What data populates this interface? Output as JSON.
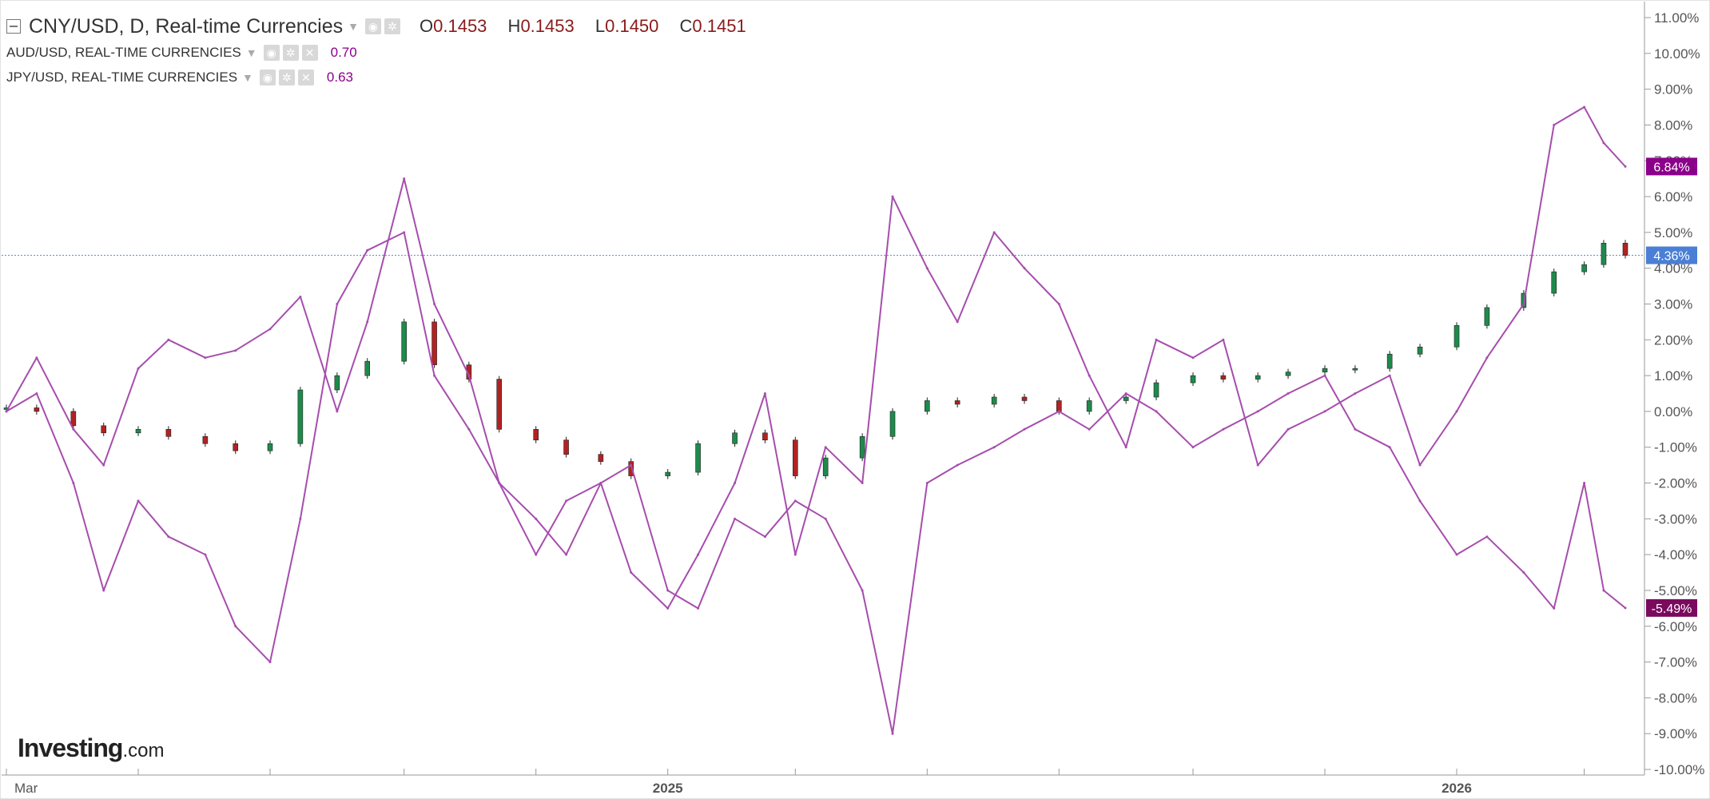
{
  "legend": {
    "main": {
      "title": "CNY/USD, D, Real-time Currencies",
      "open_label": "O",
      "open": "0.1453",
      "high_label": "H",
      "high": "0.1453",
      "low_label": "L",
      "low": "0.1450",
      "close_label": "C",
      "close": "0.1451"
    },
    "overlays": [
      {
        "name": "AUD/USD, REAL-TIME CURRENCIES",
        "value": "0.70"
      },
      {
        "name": "JPY/USD, REAL-TIME CURRENCIES",
        "value": "0.63"
      }
    ]
  },
  "logo": {
    "text": "Investing",
    "suffix": ".com"
  },
  "colors": {
    "overlay_line": "#a64dad",
    "candle_up": "#1e8a4c",
    "candle_down": "#b22222",
    "last_price_line": "#5b8fd9",
    "badge_blue": "#4a7fd6",
    "badge_purple_top": "#8b008b",
    "badge_purple_bottom": "#7a0a5e",
    "axis_text": "#555555",
    "grid": "#e6e6e6"
  },
  "chart_data": {
    "type": "line",
    "main_series_style": "candlestick",
    "scale": "percent change",
    "ylim": [
      -10,
      11
    ],
    "yticks": [
      11,
      10,
      9,
      8,
      7,
      6,
      5,
      4,
      3,
      2,
      1,
      0,
      -1,
      -2,
      -3,
      -4,
      -5,
      -6,
      -7,
      -8,
      -9,
      -10
    ],
    "ytick_labels": [
      "11.00%",
      "10.00%",
      "9.00%",
      "8.00%",
      "7.00%",
      "6.00%",
      "5.00%",
      "4.00%",
      "3.00%",
      "2.00%",
      "1.00%",
      "0.00%",
      "-1.00%",
      "-2.00%",
      "-3.00%",
      "-4.00%",
      "-5.00%",
      "-6.00%",
      "-7.00%",
      "-8.00%",
      "-9.00%",
      "-10.00%"
    ],
    "xlim": [
      "2024-03-01",
      "2026-03-20"
    ],
    "xticks": [
      "2024-03-01",
      "2024-05-01",
      "2024-07-01",
      "2024-09-01",
      "2024-11-01",
      "2025-01-01",
      "2025-03-01",
      "2025-05-01",
      "2025-07-01",
      "2025-09-01",
      "2025-11-01",
      "2026-01-01",
      "2026-03-01"
    ],
    "xtick_labels": [
      "Mar",
      "",
      "",
      "",
      "",
      "2025",
      "",
      "",
      "",
      "",
      "",
      "2026",
      ""
    ],
    "last_value_labels": [
      {
        "series": "CNY/USD",
        "value": 4.36,
        "label": "4.36%"
      },
      {
        "series": "AUD/USD",
        "value": 6.84,
        "label": "6.84%"
      },
      {
        "series": "JPY/USD",
        "value": -5.49,
        "label": "-5.49%"
      }
    ],
    "series": [
      {
        "name": "CNY/USD",
        "style": "candlestick",
        "x": [
          "2024-03-01",
          "2024-03-15",
          "2024-04-01",
          "2024-04-15",
          "2024-05-01",
          "2024-05-15",
          "2024-06-01",
          "2024-06-15",
          "2024-07-01",
          "2024-07-15",
          "2024-08-01",
          "2024-08-15",
          "2024-09-01",
          "2024-09-15",
          "2024-10-01",
          "2024-10-15",
          "2024-11-01",
          "2024-11-15",
          "2024-12-01",
          "2024-12-15",
          "2025-01-01",
          "2025-01-15",
          "2025-02-01",
          "2025-02-15",
          "2025-03-01",
          "2025-03-15",
          "2025-04-01",
          "2025-04-15",
          "2025-05-01",
          "2025-05-15",
          "2025-06-01",
          "2025-06-15",
          "2025-07-01",
          "2025-07-15",
          "2025-08-01",
          "2025-08-15",
          "2025-09-01",
          "2025-09-15",
          "2025-10-01",
          "2025-10-15",
          "2025-11-01",
          "2025-11-15",
          "2025-12-01",
          "2025-12-15",
          "2026-01-01",
          "2026-01-15",
          "2026-02-01",
          "2026-02-15",
          "2026-03-01",
          "2026-03-10",
          "2026-03-20"
        ],
        "values": [
          0.1,
          0.0,
          -0.4,
          -0.6,
          -0.5,
          -0.7,
          -0.9,
          -1.1,
          -0.9,
          0.6,
          1.0,
          1.4,
          2.5,
          1.3,
          0.9,
          -0.5,
          -0.8,
          -1.2,
          -1.4,
          -1.8,
          -1.7,
          -0.9,
          -0.6,
          -0.8,
          -1.8,
          -1.3,
          -0.7,
          0.0,
          0.3,
          0.2,
          0.4,
          0.3,
          0.0,
          0.3,
          0.4,
          0.8,
          1.0,
          0.9,
          1.0,
          1.1,
          1.2,
          1.2,
          1.6,
          1.8,
          2.4,
          2.9,
          3.3,
          3.9,
          4.1,
          4.7,
          4.36
        ]
      },
      {
        "name": "AUD/USD",
        "style": "line",
        "x": [
          "2024-03-01",
          "2024-03-15",
          "2024-04-01",
          "2024-04-15",
          "2024-05-01",
          "2024-05-15",
          "2024-06-01",
          "2024-06-15",
          "2024-07-01",
          "2024-07-15",
          "2024-08-01",
          "2024-08-15",
          "2024-09-01",
          "2024-09-15",
          "2024-10-01",
          "2024-10-15",
          "2024-11-01",
          "2024-11-15",
          "2024-12-01",
          "2024-12-15",
          "2025-01-01",
          "2025-01-15",
          "2025-02-01",
          "2025-02-15",
          "2025-03-01",
          "2025-03-15",
          "2025-04-01",
          "2025-04-15",
          "2025-05-01",
          "2025-05-15",
          "2025-06-01",
          "2025-06-15",
          "2025-07-01",
          "2025-07-15",
          "2025-08-01",
          "2025-08-15",
          "2025-09-01",
          "2025-09-15",
          "2025-10-01",
          "2025-10-15",
          "2025-11-01",
          "2025-11-15",
          "2025-12-01",
          "2025-12-15",
          "2026-01-01",
          "2026-01-15",
          "2026-02-01",
          "2026-02-15",
          "2026-03-01",
          "2026-03-10",
          "2026-03-20"
        ],
        "values": [
          0.0,
          1.5,
          -0.5,
          -1.5,
          1.2,
          2.0,
          1.5,
          1.7,
          2.3,
          3.2,
          0.0,
          2.5,
          6.5,
          3.0,
          1.0,
          -2.0,
          -3.0,
          -4.0,
          -2.0,
          -4.5,
          -5.5,
          -4.0,
          -2.0,
          0.5,
          -4.0,
          -1.0,
          -2.0,
          6.0,
          4.0,
          2.5,
          5.0,
          4.0,
          3.0,
          1.0,
          -1.0,
          2.0,
          1.5,
          2.0,
          -1.5,
          -0.5,
          0.0,
          0.5,
          1.0,
          -1.5,
          0.0,
          1.5,
          3.0,
          8.0,
          8.5,
          7.5,
          6.84
        ]
      },
      {
        "name": "JPY/USD",
        "style": "line",
        "x": [
          "2024-03-01",
          "2024-03-15",
          "2024-04-01",
          "2024-04-15",
          "2024-05-01",
          "2024-05-15",
          "2024-06-01",
          "2024-06-15",
          "2024-07-01",
          "2024-07-15",
          "2024-08-01",
          "2024-08-15",
          "2024-09-01",
          "2024-09-15",
          "2024-10-01",
          "2024-10-15",
          "2024-11-01",
          "2024-11-15",
          "2024-12-01",
          "2024-12-15",
          "2025-01-01",
          "2025-01-15",
          "2025-02-01",
          "2025-02-15",
          "2025-03-01",
          "2025-03-15",
          "2025-04-01",
          "2025-04-15",
          "2025-05-01",
          "2025-05-15",
          "2025-06-01",
          "2025-06-15",
          "2025-07-01",
          "2025-07-15",
          "2025-08-01",
          "2025-08-15",
          "2025-09-01",
          "2025-09-15",
          "2025-10-01",
          "2025-10-15",
          "2025-11-01",
          "2025-11-15",
          "2025-12-01",
          "2025-12-15",
          "2026-01-01",
          "2026-01-15",
          "2026-02-01",
          "2026-02-15",
          "2026-03-01",
          "2026-03-10",
          "2026-03-20"
        ],
        "values": [
          0.0,
          0.5,
          -2.0,
          -5.0,
          -2.5,
          -3.5,
          -4.0,
          -6.0,
          -7.0,
          -3.0,
          3.0,
          4.5,
          5.0,
          1.0,
          -0.5,
          -2.0,
          -4.0,
          -2.5,
          -2.0,
          -1.5,
          -5.0,
          -5.5,
          -3.0,
          -3.5,
          -2.5,
          -3.0,
          -5.0,
          -9.0,
          -2.0,
          -1.5,
          -1.0,
          -0.5,
          0.0,
          -0.5,
          0.5,
          0.0,
          -1.0,
          -0.5,
          0.0,
          0.5,
          1.0,
          -0.5,
          -1.0,
          -2.5,
          -4.0,
          -3.5,
          -4.5,
          -5.5,
          -2.0,
          -5.0,
          -5.49
        ]
      }
    ]
  }
}
